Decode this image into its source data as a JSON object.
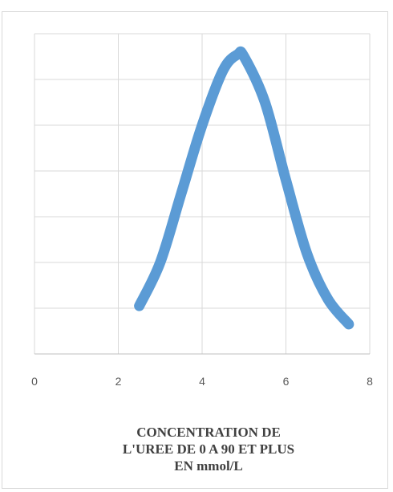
{
  "chart_data": {
    "type": "line",
    "title": "",
    "xlabel_lines": [
      "CONCENTRATION DE",
      "L'UREE DE 0 A 90 ET PLUS",
      "EN mmol/L"
    ],
    "ylabel": "",
    "xlim": [
      0,
      8
    ],
    "ylim": [
      0,
      7
    ],
    "x_ticks": [
      "0",
      "2",
      "4",
      "6",
      "8"
    ],
    "y_ticks_visible": false,
    "y_gridlines": [
      1,
      2,
      3,
      4,
      5,
      6,
      7
    ],
    "x_gridlines": [
      0,
      2,
      4,
      6,
      8
    ],
    "grid": true,
    "legend": "none",
    "series": [
      {
        "color": "#5b9bd5",
        "x": [
          2.5,
          3.0,
          3.5,
          4.0,
          4.5,
          4.85,
          5.0,
          5.5,
          6.0,
          6.5,
          7.0,
          7.5
        ],
        "y": [
          1.05,
          2.0,
          3.5,
          5.0,
          6.2,
          6.55,
          6.5,
          5.5,
          3.8,
          2.2,
          1.2,
          0.65
        ]
      }
    ]
  }
}
